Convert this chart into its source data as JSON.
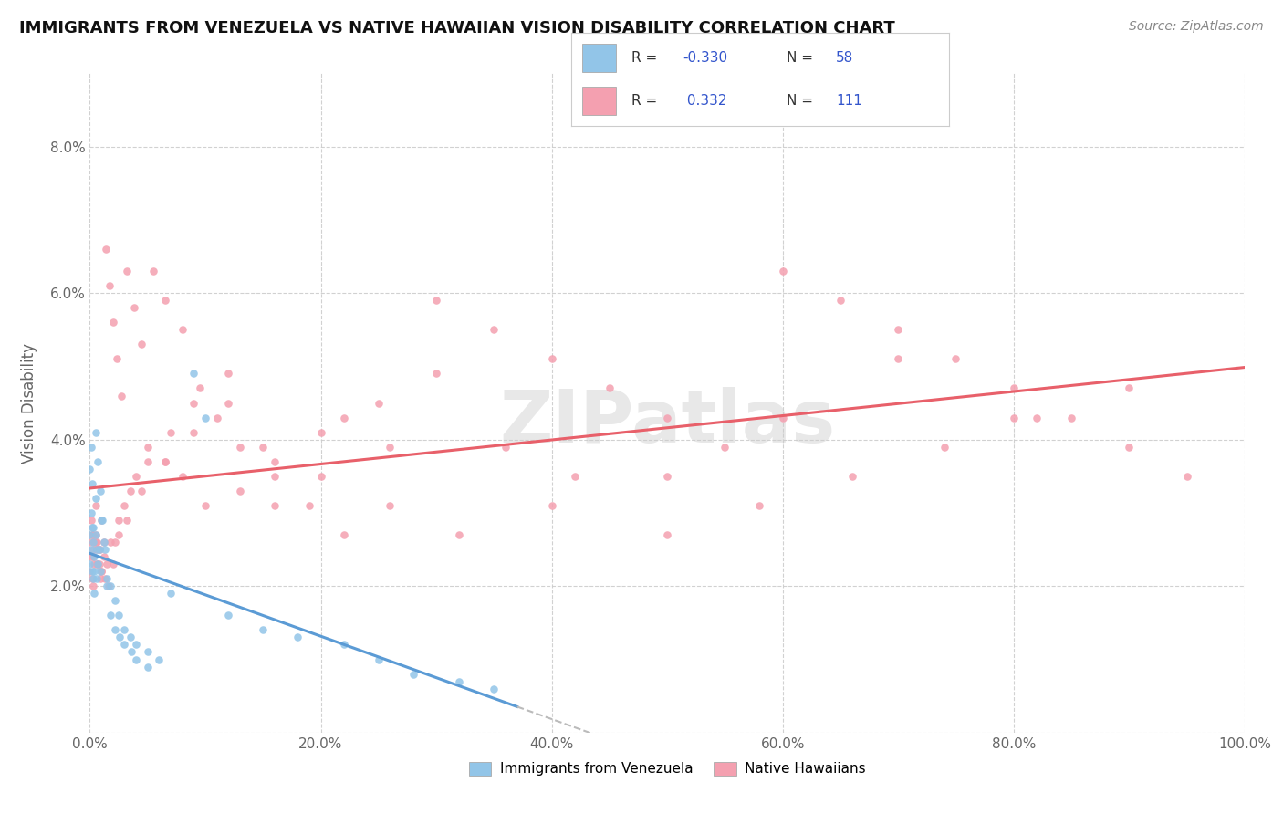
{
  "title": "IMMIGRANTS FROM VENEZUELA VS NATIVE HAWAIIAN VISION DISABILITY CORRELATION CHART",
  "source": "Source: ZipAtlas.com",
  "ylabel": "Vision Disability",
  "xlim": [
    0.0,
    1.0
  ],
  "ylim": [
    0.0,
    0.09
  ],
  "x_ticks": [
    0.0,
    0.2,
    0.4,
    0.6,
    0.8,
    1.0
  ],
  "x_tick_labels": [
    "0.0%",
    "20.0%",
    "40.0%",
    "60.0%",
    "80.0%",
    "100.0%"
  ],
  "y_ticks": [
    0.0,
    0.02,
    0.04,
    0.06,
    0.08
  ],
  "y_tick_labels": [
    "",
    "2.0%",
    "4.0%",
    "6.0%",
    "8.0%"
  ],
  "color_blue": "#92C5E8",
  "color_pink": "#F4A0B0",
  "trendline_blue": "#5B9BD5",
  "trendline_pink": "#E8606A",
  "trendline_dashed_color": "#BBBBBB",
  "background": "#FFFFFF",
  "grid_color": "#CCCCCC",
  "blue_scatter_x": [
    0.0,
    0.0,
    0.001,
    0.001,
    0.002,
    0.002,
    0.003,
    0.003,
    0.004,
    0.004,
    0.005,
    0.005,
    0.006,
    0.006,
    0.007,
    0.008,
    0.009,
    0.01,
    0.012,
    0.015,
    0.018,
    0.022,
    0.025,
    0.03,
    0.035,
    0.04,
    0.05,
    0.06,
    0.07,
    0.09,
    0.1,
    0.12,
    0.15,
    0.18,
    0.22,
    0.25,
    0.28,
    0.32,
    0.35,
    0.0,
    0.001,
    0.002,
    0.003,
    0.004,
    0.005,
    0.007,
    0.009,
    0.011,
    0.013,
    0.015,
    0.018,
    0.022,
    0.026,
    0.03,
    0.036,
    0.04,
    0.05
  ],
  "blue_scatter_y": [
    0.027,
    0.023,
    0.03,
    0.025,
    0.028,
    0.022,
    0.026,
    0.021,
    0.024,
    0.019,
    0.032,
    0.027,
    0.025,
    0.021,
    0.023,
    0.025,
    0.022,
    0.029,
    0.026,
    0.021,
    0.02,
    0.018,
    0.016,
    0.014,
    0.013,
    0.012,
    0.011,
    0.01,
    0.019,
    0.049,
    0.043,
    0.016,
    0.014,
    0.013,
    0.012,
    0.01,
    0.008,
    0.007,
    0.006,
    0.036,
    0.039,
    0.034,
    0.028,
    0.022,
    0.041,
    0.037,
    0.033,
    0.029,
    0.025,
    0.02,
    0.016,
    0.014,
    0.013,
    0.012,
    0.011,
    0.01,
    0.009
  ],
  "pink_scatter_x": [
    0.0,
    0.0,
    0.001,
    0.001,
    0.002,
    0.002,
    0.003,
    0.003,
    0.004,
    0.005,
    0.005,
    0.006,
    0.007,
    0.008,
    0.009,
    0.01,
    0.012,
    0.014,
    0.017,
    0.02,
    0.023,
    0.027,
    0.032,
    0.038,
    0.045,
    0.055,
    0.065,
    0.08,
    0.095,
    0.11,
    0.13,
    0.16,
    0.19,
    0.22,
    0.26,
    0.3,
    0.35,
    0.4,
    0.45,
    0.5,
    0.55,
    0.6,
    0.65,
    0.7,
    0.75,
    0.8,
    0.85,
    0.9,
    0.95,
    0.002,
    0.004,
    0.006,
    0.008,
    0.01,
    0.013,
    0.016,
    0.02,
    0.025,
    0.03,
    0.04,
    0.05,
    0.065,
    0.08,
    0.1,
    0.13,
    0.16,
    0.2,
    0.25,
    0.3,
    0.36,
    0.42,
    0.5,
    0.58,
    0.66,
    0.74,
    0.82,
    0.9,
    0.003,
    0.005,
    0.008,
    0.012,
    0.018,
    0.025,
    0.035,
    0.05,
    0.07,
    0.09,
    0.12,
    0.15,
    0.2,
    0.26,
    0.32,
    0.4,
    0.5,
    0.6,
    0.7,
    0.8,
    0.003,
    0.006,
    0.01,
    0.015,
    0.022,
    0.032,
    0.045,
    0.065,
    0.09,
    0.12,
    0.16,
    0.22
  ],
  "pink_scatter_y": [
    0.026,
    0.022,
    0.029,
    0.024,
    0.027,
    0.021,
    0.025,
    0.02,
    0.023,
    0.031,
    0.027,
    0.026,
    0.023,
    0.025,
    0.021,
    0.029,
    0.026,
    0.066,
    0.061,
    0.056,
    0.051,
    0.046,
    0.063,
    0.058,
    0.053,
    0.063,
    0.059,
    0.055,
    0.047,
    0.043,
    0.039,
    0.035,
    0.031,
    0.043,
    0.039,
    0.059,
    0.055,
    0.051,
    0.047,
    0.043,
    0.039,
    0.063,
    0.059,
    0.055,
    0.051,
    0.047,
    0.043,
    0.039,
    0.035,
    0.027,
    0.026,
    0.025,
    0.023,
    0.022,
    0.021,
    0.02,
    0.023,
    0.027,
    0.031,
    0.035,
    0.039,
    0.037,
    0.035,
    0.031,
    0.033,
    0.037,
    0.041,
    0.045,
    0.049,
    0.039,
    0.035,
    0.027,
    0.031,
    0.035,
    0.039,
    0.043,
    0.047,
    0.027,
    0.026,
    0.025,
    0.024,
    0.026,
    0.029,
    0.033,
    0.037,
    0.041,
    0.045,
    0.049,
    0.039,
    0.035,
    0.031,
    0.027,
    0.031,
    0.035,
    0.043,
    0.051,
    0.043,
    0.024,
    0.023,
    0.022,
    0.023,
    0.026,
    0.029,
    0.033,
    0.037,
    0.041,
    0.045,
    0.031,
    0.027
  ]
}
